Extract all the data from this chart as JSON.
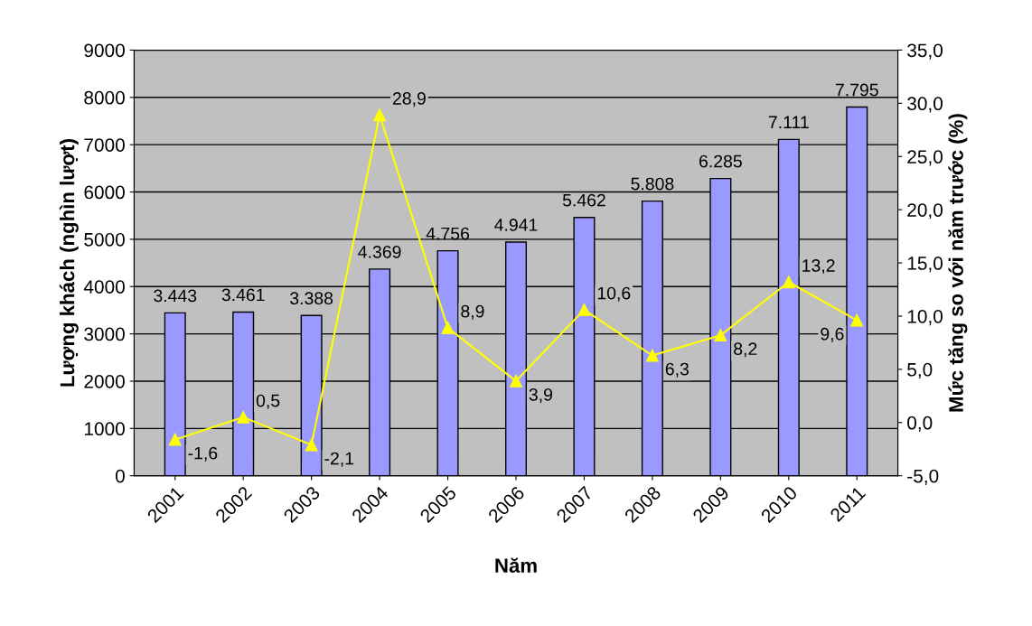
{
  "chart_data": {
    "type": "bar",
    "xlabel": "Năm",
    "ylabel": "Lượng khách (nghìn lượt)",
    "y2label": "Mức tăng so với năm trước (%)",
    "categories": [
      "2001",
      "2002",
      "2003",
      "2004",
      "2005",
      "2006",
      "2007",
      "2008",
      "2009",
      "2010",
      "2011"
    ],
    "series": [
      {
        "color": "#9999ff",
        "values": [
          3443,
          3461,
          3388,
          4369,
          4756,
          4941,
          5462,
          5808,
          6285,
          7111,
          7795
        ],
        "value_labels": [
          "3.443",
          "3.461",
          "3.388",
          "4.369",
          "4.756",
          "4.941",
          "5.462",
          "5.808",
          "6.285",
          "7.111",
          "7.795"
        ]
      },
      {
        "type": "line",
        "axis": "y2",
        "color": "#ffff00",
        "marker": "triangle",
        "values": [
          -1.6,
          0.5,
          -2.1,
          28.9,
          8.9,
          3.9,
          10.6,
          6.3,
          8.2,
          13.2,
          9.6
        ],
        "value_labels": [
          "-1,6",
          "0,5",
          "-2,1",
          "28,9",
          "8,9",
          "3,9",
          "10,6",
          "6,3",
          "8,2",
          "13,2",
          "9,6"
        ]
      }
    ],
    "ylim": [
      0,
      9000
    ],
    "yticks": [
      0,
      1000,
      2000,
      3000,
      4000,
      5000,
      6000,
      7000,
      8000,
      9000
    ],
    "y2lim": [
      -5,
      35
    ],
    "y2ticks": [
      {
        "value": -5,
        "label": "-5,0"
      },
      {
        "value": 0,
        "label": "0,0"
      },
      {
        "value": 5,
        "label": "5,0"
      },
      {
        "value": 10,
        "label": "10,0"
      },
      {
        "value": 15,
        "label": "15,0"
      },
      {
        "value": 20,
        "label": "20,0"
      },
      {
        "value": 25,
        "label": "25,0"
      },
      {
        "value": 30,
        "label": "30,0"
      },
      {
        "value": 35,
        "label": "35,0"
      }
    ],
    "grid": "y"
  }
}
